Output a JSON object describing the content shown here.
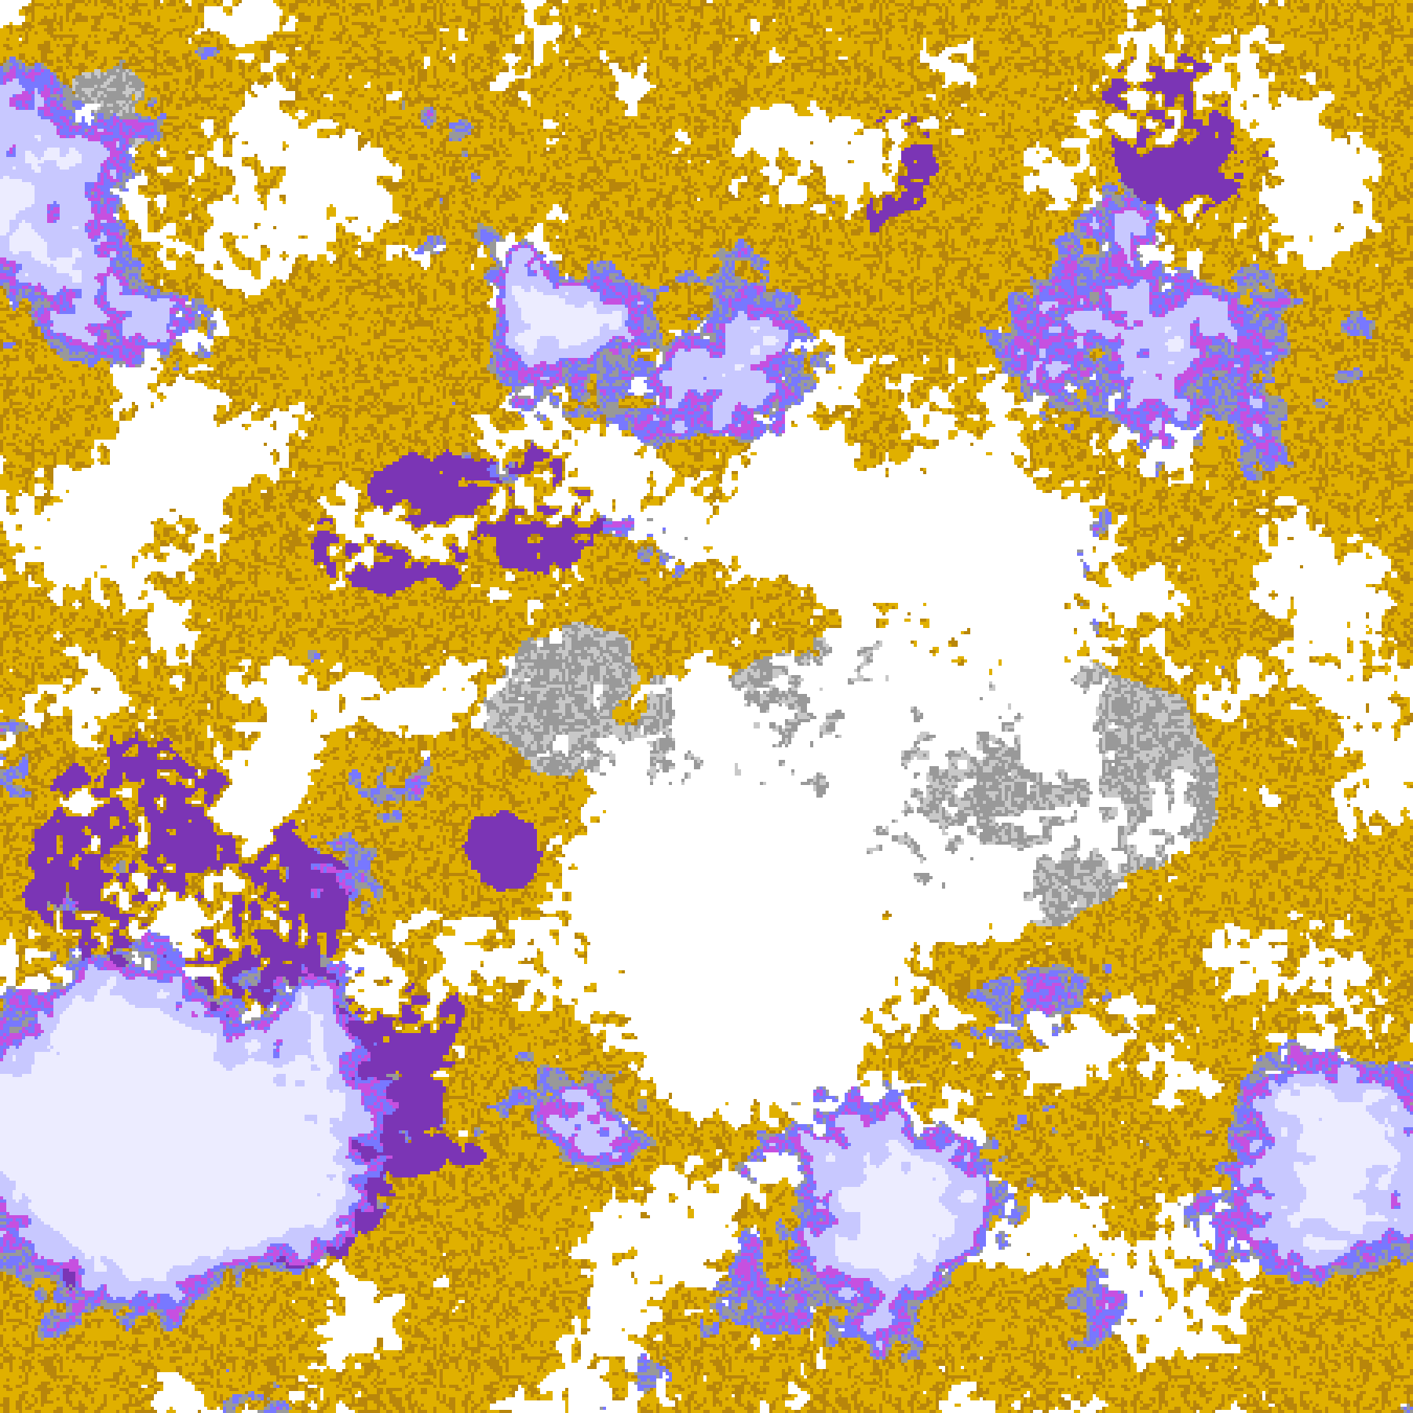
{
  "image": {
    "kind": "classified satellite cloud-type map",
    "colors": {
      "clear": "#ffffff",
      "low_gold": "#e0b000",
      "low_dark_gold": "#b8860b",
      "mid_gray": "#999999",
      "mid_light_gray": "#c8c8c8",
      "thick_purple": "#7b35b5",
      "magenta": "#c650e0",
      "blue": "#7878ff",
      "lavender": "#c8c8ff",
      "high_near_white": "#ececff"
    }
  }
}
